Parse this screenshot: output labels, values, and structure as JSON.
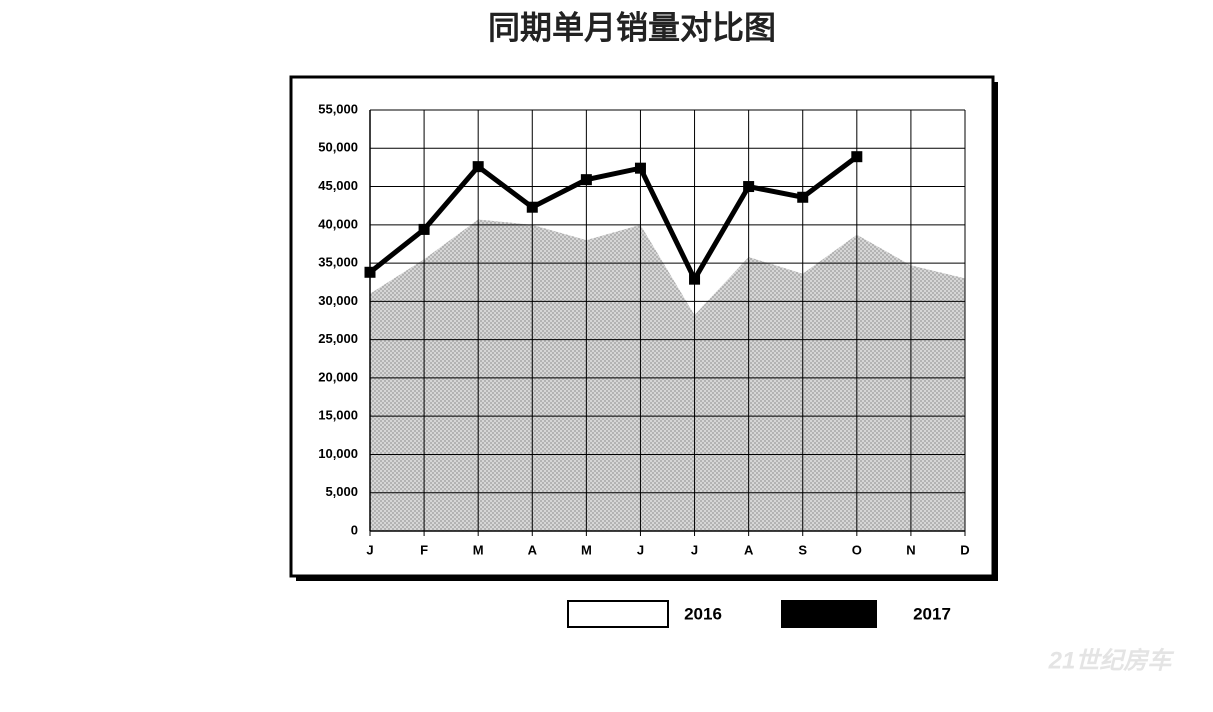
{
  "chart_data": {
    "type": "line",
    "title": "同期单月销量对比图",
    "categories": [
      "J",
      "F",
      "M",
      "A",
      "M",
      "J",
      "J",
      "A",
      "S",
      "O",
      "N",
      "D"
    ],
    "series": [
      {
        "name": "2016",
        "style": "area",
        "color": "#c4c4c4",
        "values": [
          31000,
          35500,
          40700,
          40000,
          38000,
          40000,
          28200,
          35800,
          33600,
          38700,
          34700,
          33000
        ]
      },
      {
        "name": "2017",
        "style": "line",
        "color": "#000000",
        "values": [
          33800,
          39400,
          47600,
          42300,
          45900,
          47400,
          32900,
          45000,
          43600,
          48900,
          null,
          null
        ]
      }
    ],
    "ylim": [
      0,
      55000
    ],
    "yticks": [
      0,
      {
        "value": 5000,
        "label": "5,000"
      },
      {
        "value": 10000,
        "label": "10,000"
      },
      {
        "value": 15000,
        "label": "15,000"
      },
      {
        "value": 20000,
        "label": "20,000"
      },
      {
        "value": 25000,
        "label": "25,000"
      },
      {
        "value": 30000,
        "label": "30,000"
      },
      {
        "value": 35000,
        "label": "35,000"
      },
      {
        "value": 40000,
        "label": "40,000"
      },
      {
        "value": 45000,
        "label": "45,000"
      },
      {
        "value": 50000,
        "label": "50,000"
      },
      {
        "value": 55000,
        "label": "55,000"
      }
    ],
    "grid": true,
    "watermark": "21世纪房车"
  }
}
